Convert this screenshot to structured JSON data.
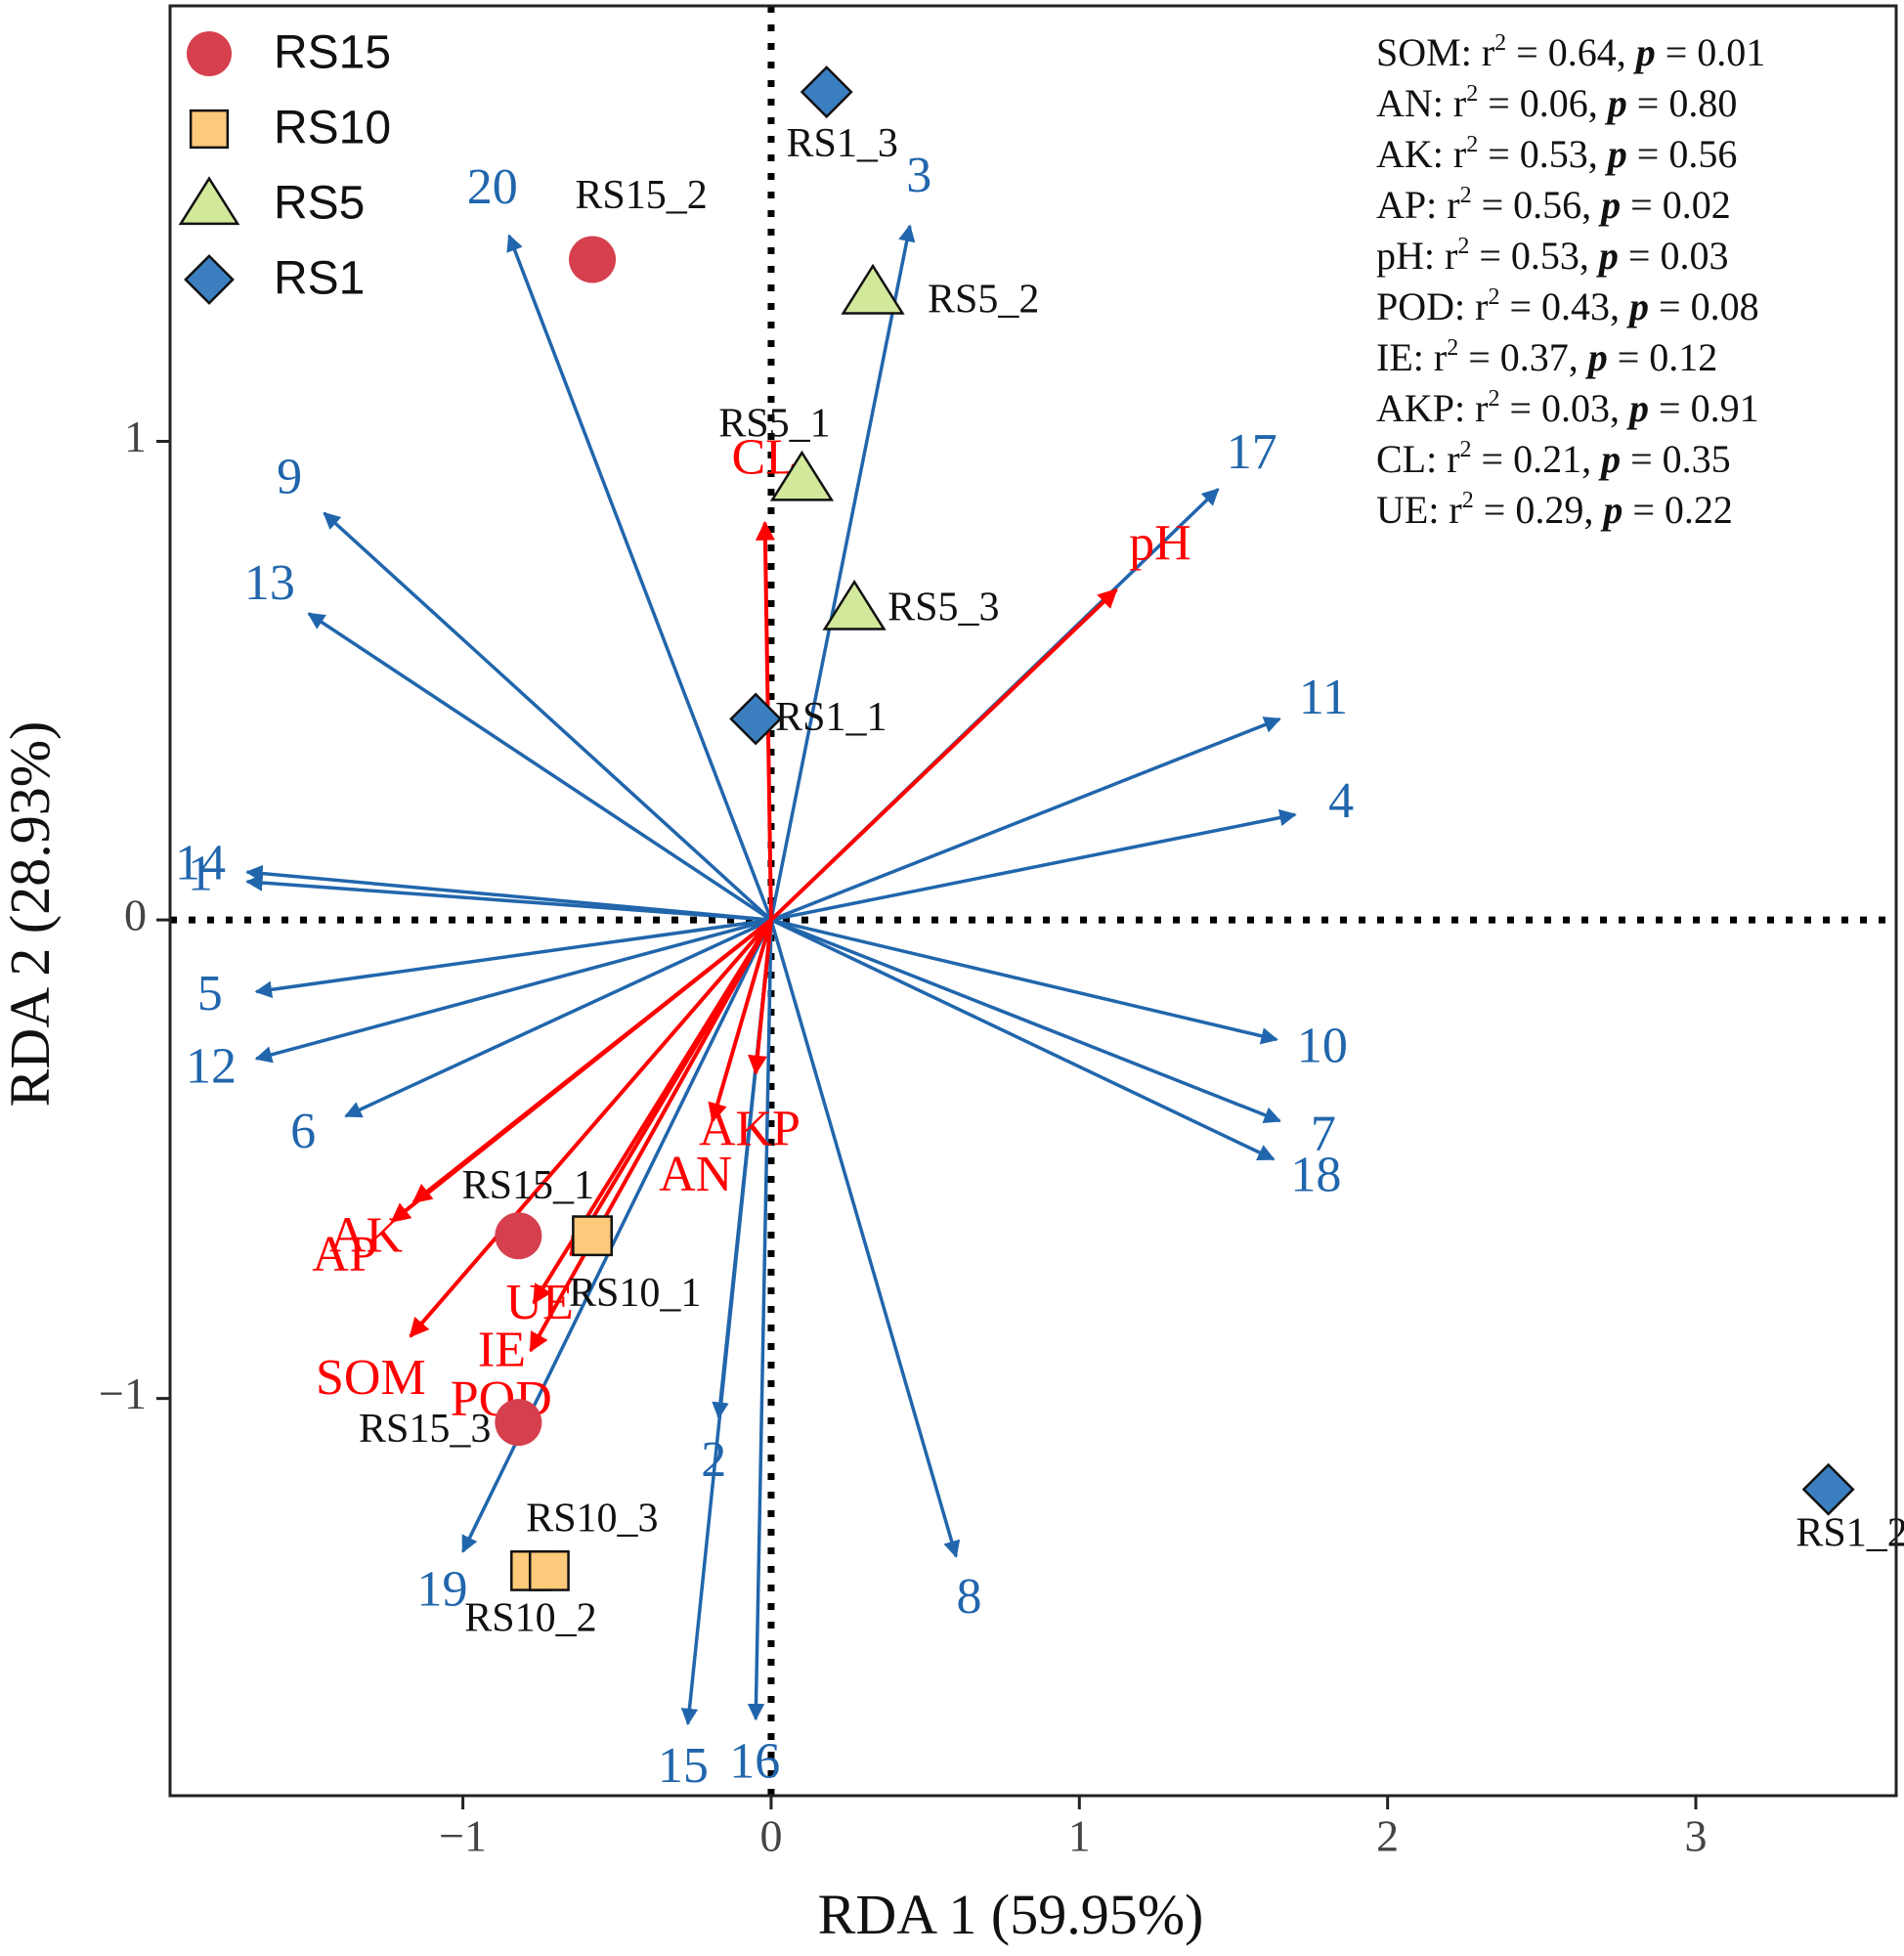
{
  "chart_data": {
    "type": "scatter",
    "title": "",
    "xlabel": "RDA 1 (59.95%)",
    "ylabel": "RDA 2 (28.93%)",
    "xlim": [
      -1.95,
      3.65
    ],
    "ylim": [
      -1.83,
      1.91
    ],
    "xticks": [
      -1,
      0,
      1,
      2,
      3
    ],
    "xtick_labels": [
      "−1",
      "0",
      "1",
      "2",
      "3"
    ],
    "yticks": [
      -1,
      0,
      1
    ],
    "ytick_labels": [
      "−1",
      "0",
      "1"
    ],
    "reference_lines": {
      "x": 0,
      "y": 0,
      "style": "dotted"
    },
    "colors": {
      "species": "#2166ac",
      "env": "#ff0000",
      "RS15": "#d6404e",
      "RS10": "#fdc97a",
      "RS5": "#d2e89a",
      "RS1": "#3b7fc0"
    },
    "legend": {
      "position": "top-left",
      "entries": [
        {
          "name": "RS15",
          "shape": "circle"
        },
        {
          "name": "RS10",
          "shape": "square"
        },
        {
          "name": "RS5",
          "shape": "triangle"
        },
        {
          "name": "RS1",
          "shape": "diamond"
        }
      ]
    },
    "groups": [
      {
        "name": "RS15",
        "shape": "circle",
        "points": [
          {
            "label": "RS15_1",
            "x": -0.82,
            "y": -0.66
          },
          {
            "label": "RS15_2",
            "x": -0.58,
            "y": 1.38
          },
          {
            "label": "RS15_3",
            "x": -0.82,
            "y": -1.05
          }
        ]
      },
      {
        "name": "RS10",
        "shape": "square",
        "points": [
          {
            "label": "RS10_1",
            "x": -0.58,
            "y": -0.66
          },
          {
            "label": "RS10_2",
            "x": -0.78,
            "y": -1.36
          },
          {
            "label": "RS10_3",
            "x": -0.72,
            "y": -1.36
          }
        ]
      },
      {
        "name": "RS5",
        "shape": "triangle",
        "points": [
          {
            "label": "RS5_1",
            "x": 0.1,
            "y": 0.92
          },
          {
            "label": "RS5_2",
            "x": 0.33,
            "y": 1.31
          },
          {
            "label": "RS5_3",
            "x": 0.27,
            "y": 0.65
          }
        ]
      },
      {
        "name": "RS1",
        "shape": "diamond",
        "points": [
          {
            "label": "RS1_1",
            "x": -0.05,
            "y": 0.42
          },
          {
            "label": "RS1_2",
            "x": 3.43,
            "y": -1.19
          },
          {
            "label": "RS1_3",
            "x": 0.18,
            "y": 1.73
          }
        ]
      }
    ],
    "species_arrows": [
      {
        "label": "1",
        "x": -1.7,
        "y": 0.08
      },
      {
        "label": "2",
        "x": -0.17,
        "y": -1.04
      },
      {
        "label": "3",
        "x": 0.45,
        "y": 1.45
      },
      {
        "label": "4",
        "x": 1.7,
        "y": 0.22
      },
      {
        "label": "5",
        "x": -1.67,
        "y": -0.15
      },
      {
        "label": "6",
        "x": -1.38,
        "y": -0.41
      },
      {
        "label": "7",
        "x": 1.65,
        "y": -0.42
      },
      {
        "label": "8",
        "x": 0.6,
        "y": -1.33
      },
      {
        "label": "9",
        "x": -1.45,
        "y": 0.85
      },
      {
        "label": "10",
        "x": 1.64,
        "y": -0.25
      },
      {
        "label": "11",
        "x": 1.65,
        "y": 0.42
      },
      {
        "label": "12",
        "x": -1.67,
        "y": -0.29
      },
      {
        "label": "13",
        "x": -1.5,
        "y": 0.64
      },
      {
        "label": "14",
        "x": -1.7,
        "y": 0.1
      },
      {
        "label": "15",
        "x": -0.27,
        "y": -1.68
      },
      {
        "label": "16",
        "x": -0.05,
        "y": -1.67
      },
      {
        "label": "17",
        "x": 1.45,
        "y": 0.9
      },
      {
        "label": "18",
        "x": 1.63,
        "y": -0.5
      },
      {
        "label": "19",
        "x": -1.0,
        "y": -1.32
      },
      {
        "label": "20",
        "x": -0.85,
        "y": 1.43
      }
    ],
    "env_arrows": [
      {
        "label": "SOM",
        "x": -1.17,
        "y": -0.87
      },
      {
        "label": "AN",
        "x": -0.19,
        "y": -0.42
      },
      {
        "label": "AK",
        "x": -1.16,
        "y": -0.59
      },
      {
        "label": "AP",
        "x": -1.23,
        "y": -0.63
      },
      {
        "label": "pH",
        "x": 1.12,
        "y": 0.69
      },
      {
        "label": "POD",
        "x": -0.78,
        "y": -0.9
      },
      {
        "label": "IE",
        "x": -0.77,
        "y": -0.8
      },
      {
        "label": "AKP",
        "x": -0.05,
        "y": -0.32
      },
      {
        "label": "CL",
        "x": -0.02,
        "y": 0.83
      },
      {
        "label": "UE",
        "x": -0.65,
        "y": -0.7
      }
    ],
    "stats": [
      {
        "var": "SOM",
        "r2": "0.64",
        "p": "0.01"
      },
      {
        "var": "AN",
        "r2": "0.06",
        "p": "0.80"
      },
      {
        "var": "AK",
        "r2": "0.53",
        "p": "0.56"
      },
      {
        "var": "AP",
        "r2": "0.56",
        "p": "0.02"
      },
      {
        "var": "pH",
        "r2": "0.53",
        "p": "0.03"
      },
      {
        "var": "POD",
        "r2": "0.43",
        "p": "0.08"
      },
      {
        "var": "IE",
        "r2": "0.37",
        "p": "0.12"
      },
      {
        "var": "AKP",
        "r2": "0.03",
        "p": "0.91"
      },
      {
        "var": "CL",
        "r2": "0.21",
        "p": "0.35"
      },
      {
        "var": "UE",
        "r2": "0.29",
        "p": "0.22"
      }
    ]
  }
}
